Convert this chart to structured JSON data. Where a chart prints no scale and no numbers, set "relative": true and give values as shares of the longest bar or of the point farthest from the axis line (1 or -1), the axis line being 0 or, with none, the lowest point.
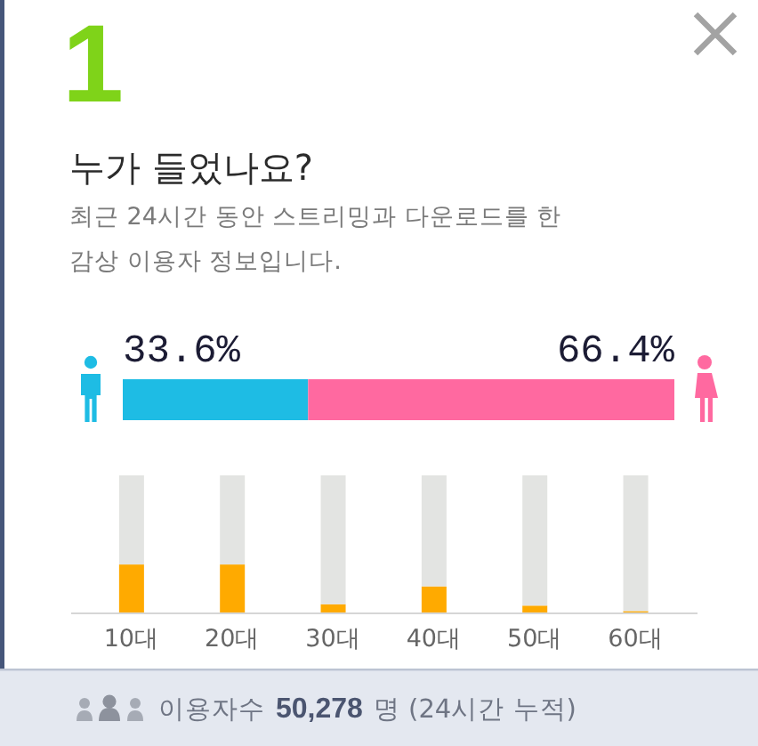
{
  "chart_data": [
    {
      "type": "bar",
      "title": "누가 들었나요?",
      "subtitle": "최근 24시간 동안 스트리밍과 다운로드를 한 감상 이용자 정보입니다.",
      "annotations": [
        "1"
      ],
      "orientation": "horizontal",
      "stacked": true,
      "categories": [
        null
      ],
      "series": [
        {
          "color": "#1ebce4",
          "values": [
            33.6
          ],
          "value_labels": [
            "33.6%"
          ]
        },
        {
          "color": "#ff69a0",
          "values": [
            66.4
          ],
          "value_labels": [
            "66.4%"
          ]
        }
      ],
      "xlim": [
        0,
        100
      ]
    },
    {
      "type": "bar",
      "categories": [
        "10대",
        "20대",
        "30대",
        "40대",
        "50대",
        "60대"
      ],
      "stacked": true,
      "relative": true,
      "tick_labels": "x",
      "series": [
        {
          "color": "#ffaa00",
          "values": [
            0.35,
            0.35,
            0.06,
            0.19,
            0.05,
            0.01
          ]
        },
        {
          "color": "#e3e4e2",
          "values": [
            0.65,
            0.65,
            0.94,
            0.81,
            0.95,
            0.99
          ]
        }
      ],
      "annotations": [
        "이용자수",
        "50,278",
        "명 (24시간 누적)"
      ]
    }
  ]
}
